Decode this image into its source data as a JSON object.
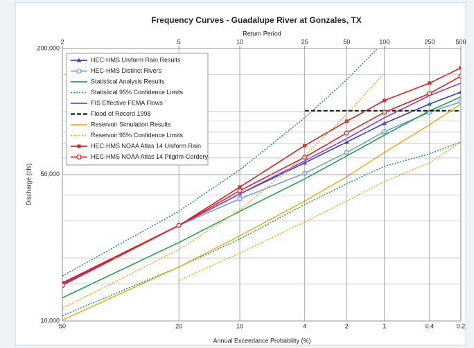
{
  "chart_data": {
    "type": "line",
    "title": "Frequency Curves - Guadalupe River at Gonzales, TX",
    "x2_label": "Return Period",
    "x_label": "Annual Exceedance Probability (%)",
    "y_label": "Discharge (cfs)",
    "log_y": true,
    "x_scale": "normal-probability",
    "grid": true,
    "legend": "upper left",
    "x": [
      50,
      20,
      10,
      4,
      2,
      1,
      0.4,
      0.2
    ],
    "xlim": [
      50,
      0.2
    ],
    "xticks": [
      50,
      20,
      10,
      4,
      2,
      1,
      0.4,
      0.2
    ],
    "x2ticks": [
      {
        "value": 50,
        "label": "2"
      },
      {
        "value": 20,
        "label": "5"
      },
      {
        "value": 10,
        "label": "10"
      },
      {
        "value": 4,
        "label": "25"
      },
      {
        "value": 2,
        "label": "50"
      },
      {
        "value": 1,
        "label": "100"
      },
      {
        "value": 0.4,
        "label": "250"
      },
      {
        "value": 0.2,
        "label": "500"
      }
    ],
    "ylim": [
      10000,
      200000
    ],
    "yticks": [
      {
        "value": 10000,
        "label": "10,000"
      },
      {
        "value": 50000,
        "label": "50,000"
      },
      {
        "value": 200000,
        "label": "200,000"
      }
    ],
    "yminor": [
      15000,
      20000,
      30000,
      40000,
      60000,
      70000,
      80000,
      90000,
      100000,
      150000
    ],
    "series": [
      {
        "name": "HEC-HMS Uniform Rain Results",
        "color": "#2f3fd6",
        "marker": "triangle",
        "values": [
          15000,
          28600,
          40400,
          56900,
          71500,
          87900,
          108700,
          123800
        ]
      },
      {
        "name": "HEC-HMS Distinct Rivers",
        "color": "#6fa3d6",
        "marker": "circle",
        "values": [
          14800,
          28600,
          38300,
          50700,
          63800,
          80200,
          99200,
          111300
        ]
      },
      {
        "name": "Statistical Analysis Results",
        "color": "#22a050",
        "values": [
          12900,
          23700,
          33400,
          47700,
          61400,
          77200,
          100800,
          117400
        ]
      },
      {
        "name": "Statistical 95% Confidence Limits",
        "color": "#22a050",
        "dash": "dotted",
        "values": [
          16400,
          33400,
          52700,
          93400,
          142000,
          216000,
          null,
          null
        ]
      },
      {
        "name": "Statistical 95% Confidence Limits",
        "color": "#22a050",
        "dash": "dotted",
        "legend": false,
        "values": [
          10600,
          18100,
          24600,
          36000,
          45200,
          54800,
          62800,
          71500
        ]
      },
      {
        "name": "FIS Effective FEMA Flows",
        "color": "#8a3fc0",
        "values": [
          15000,
          28600,
          40400,
          58200,
          74300,
          93400,
          119200,
          136700
        ]
      },
      {
        "name": "Flood of Record 1998",
        "color": "#111111",
        "dash": "dashed",
        "values": [
          null,
          null,
          null,
          100800,
          100800,
          100800,
          100800,
          100800
        ]
      },
      {
        "name": "Reservoir Simulation Results",
        "color": "#f0b020",
        "values": [
          10100,
          18100,
          25500,
          37400,
          48800,
          63800,
          86500,
          108700
        ]
      },
      {
        "name": "Reservoir 95% Confidence Limits",
        "color": "#f0b020",
        "dash": "dotted",
        "values": [
          11500,
          21900,
          33900,
          61400,
          97000,
          153000,
          null,
          null
        ]
      },
      {
        "name": "Reservoir 95% Confidence Limits",
        "color": "#f0b020",
        "dash": "dotted",
        "legend": false,
        "values": [
          null,
          15600,
          21100,
          29700,
          37400,
          46300,
          56900,
          71500
        ]
      },
      {
        "name": "HEC-HMS NOAA Atlas 14 Uniform Rain",
        "color": "#e02020",
        "marker": "square",
        "values": [
          15200,
          28600,
          43600,
          68800,
          89900,
          113000,
          136700,
          161700
        ]
      },
      {
        "name": "HEC-HMS NOAA Atlas 14 Pilgrim-Cordery",
        "color": "#e02020",
        "marker": "circle",
        "values": [
          14800,
          28600,
          41900,
          60500,
          79000,
          99200,
          122000,
          147500
        ]
      }
    ]
  }
}
